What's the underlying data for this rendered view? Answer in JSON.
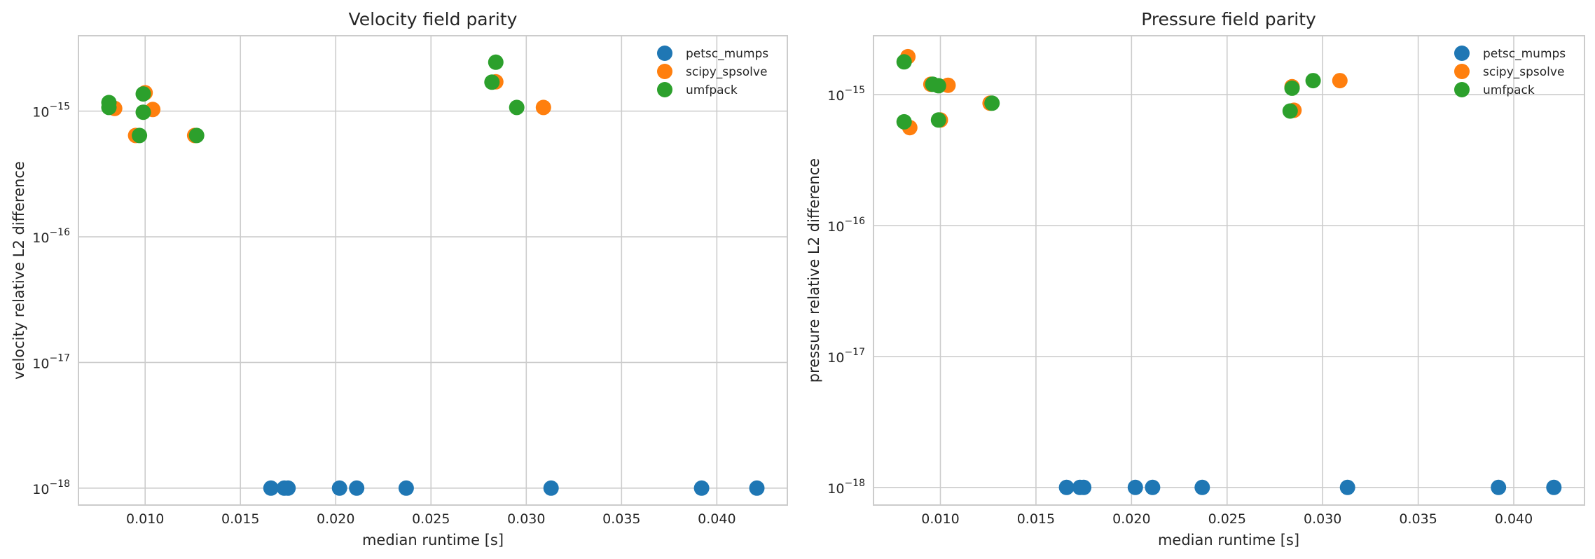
{
  "colors": {
    "petsc_mumps": "#1f77b4",
    "scipy_spsolve": "#ff7f0e",
    "umfpack": "#2ca02c",
    "grid": "#cccccc",
    "text": "#262626"
  },
  "chart_data": [
    {
      "type": "scatter",
      "title": "Velocity field parity",
      "xlabel": "median runtime [s]",
      "ylabel": "velocity relative L2 difference",
      "yscale": "log",
      "xlim": [
        0.0065,
        0.0437
      ],
      "ylim_log10": [
        -18.135,
        -14.4
      ],
      "xticks": [
        "0.010",
        "0.015",
        "0.020",
        "0.025",
        "0.030",
        "0.035",
        "0.040"
      ],
      "xtick_values": [
        0.01,
        0.015,
        0.02,
        0.025,
        0.03,
        0.035,
        0.04
      ],
      "yticks": [
        {
          "base": "10",
          "exp": "−18",
          "value": 1e-18
        },
        {
          "base": "10",
          "exp": "−17",
          "value": 1e-17
        },
        {
          "base": "10",
          "exp": "−16",
          "value": 1e-16
        },
        {
          "base": "10",
          "exp": "−15",
          "value": 1e-15
        }
      ],
      "grid": true,
      "legend_position": "top-right",
      "series": [
        {
          "name": "petsc_mumps",
          "x": [
            0.0166,
            0.0173,
            0.0175,
            0.0202,
            0.0211,
            0.0237,
            0.0313,
            0.0392,
            0.0421
          ],
          "y": [
            1e-18,
            1e-18,
            1e-18,
            1e-18,
            1e-18,
            1e-18,
            1e-18,
            1e-18,
            1e-18
          ]
        },
        {
          "name": "scipy_spsolve",
          "x": [
            0.0082,
            0.0084,
            0.0095,
            0.01,
            0.0104,
            0.0126,
            0.0284,
            0.0309
          ],
          "y": [
            1.08e-15,
            1.05e-15,
            6.4e-16,
            1.4e-15,
            1.03e-15,
            6.4e-16,
            1.71e-15,
            1.07e-15
          ]
        },
        {
          "name": "umfpack",
          "x": [
            0.0081,
            0.0081,
            0.0097,
            0.0099,
            0.0099,
            0.0127,
            0.0282,
            0.0284,
            0.0295
          ],
          "y": [
            1.17e-15,
            1.07e-15,
            6.4e-16,
            1.37e-15,
            9.8e-16,
            6.4e-16,
            1.7e-15,
            2.45e-15,
            1.07e-15
          ]
        }
      ]
    },
    {
      "type": "scatter",
      "title": "Pressure field parity",
      "xlabel": "median runtime [s]",
      "ylabel": "pressure relative L2 difference",
      "yscale": "log",
      "xlim": [
        0.0065,
        0.0437
      ],
      "ylim_log10": [
        -18.135,
        -14.55
      ],
      "xticks": [
        "0.010",
        "0.015",
        "0.020",
        "0.025",
        "0.030",
        "0.035",
        "0.040"
      ],
      "xtick_values": [
        0.01,
        0.015,
        0.02,
        0.025,
        0.03,
        0.035,
        0.04
      ],
      "yticks": [
        {
          "base": "10",
          "exp": "−18",
          "value": 1e-18
        },
        {
          "base": "10",
          "exp": "−17",
          "value": 1e-17
        },
        {
          "base": "10",
          "exp": "−16",
          "value": 1e-16
        },
        {
          "base": "10",
          "exp": "−15",
          "value": 1e-15
        }
      ],
      "grid": true,
      "legend_position": "top-right",
      "series": [
        {
          "name": "petsc_mumps",
          "x": [
            0.0166,
            0.0173,
            0.0175,
            0.0202,
            0.0211,
            0.0237,
            0.0313,
            0.0392,
            0.0421
          ],
          "y": [
            1e-18,
            1e-18,
            1e-18,
            1e-18,
            1e-18,
            1e-18,
            1e-18,
            1e-18,
            1e-18
          ]
        },
        {
          "name": "scipy_spsolve",
          "x": [
            0.0083,
            0.0084,
            0.0095,
            0.01,
            0.0104,
            0.0126,
            0.0284,
            0.0285,
            0.0309
          ],
          "y": [
            1.95e-15,
            5.6e-16,
            1.2e-15,
            6.4e-16,
            1.18e-15,
            8.6e-16,
            1.15e-15,
            7.6e-16,
            1.28e-15
          ]
        },
        {
          "name": "umfpack",
          "x": [
            0.0081,
            0.0081,
            0.0096,
            0.0099,
            0.0099,
            0.0127,
            0.0283,
            0.0284,
            0.0295
          ],
          "y": [
            1.78e-15,
            6.2e-16,
            1.2e-15,
            6.4e-16,
            1.17e-15,
            8.6e-16,
            7.5e-16,
            1.12e-15,
            1.28e-15
          ]
        }
      ]
    }
  ]
}
